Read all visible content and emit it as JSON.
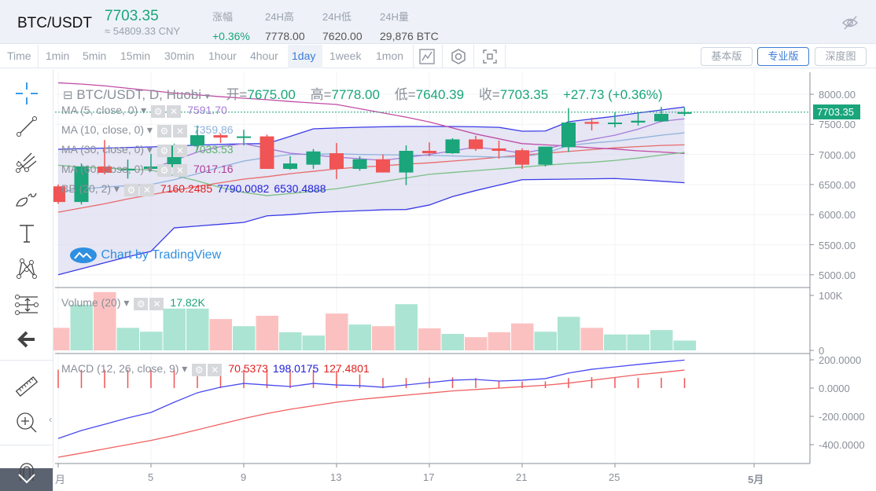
{
  "header": {
    "symbol": "BTC/USDT",
    "price": "7703.35",
    "cny": "≈ 54809.33 CNY",
    "stats": [
      {
        "label": "涨幅",
        "value": "+0.36%",
        "positive": true
      },
      {
        "label": "24H高",
        "value": "7778.00"
      },
      {
        "label": "24H低",
        "value": "7620.00"
      },
      {
        "label": "24H量",
        "value": "29,876 BTC"
      }
    ],
    "hide_icon": "eye-off-icon"
  },
  "toolbar": {
    "intervals": [
      "Time",
      "1min",
      "5min",
      "15min",
      "30min",
      "1hour",
      "4hour",
      "1day",
      "1week",
      "1mon"
    ],
    "active": "1day",
    "icons": [
      "indicator-icon",
      "settings-icon",
      "screenshot-icon"
    ],
    "views": [
      "基本版",
      "专业版",
      "深度图"
    ],
    "active_view": "专业版"
  },
  "sidebar": {
    "tools": [
      "crosshair-icon",
      "trend-line-icon",
      "pitchfork-icon",
      "brush-icon",
      "text-icon",
      "pattern-icon",
      "measure-icon",
      "back-arrow-icon",
      "ruler-icon",
      "zoom-in-icon",
      "magnet-icon"
    ],
    "collapse": "‹"
  },
  "colors": {
    "up": "#1aa57a",
    "down": "#f05454",
    "ma5": "#a67bd8",
    "ma10": "#8fb1dc",
    "ma30": "#7bbf86",
    "ma60": "#c04ca6",
    "bb_upper": "#3a3ae8",
    "bb_mid": "#e86a6a",
    "bb_lower": "#3a3ae8",
    "macd": "#4a4af0",
    "signal": "#f06060"
  },
  "legend": {
    "title": "BTC/USDT, D, Huobi",
    "ohlc": [
      {
        "k": "开=",
        "v": "7675.00"
      },
      {
        "k": "高=",
        "v": "7778.00"
      },
      {
        "k": "低=",
        "v": "7640.39"
      },
      {
        "k": "收=",
        "v": "7703.35"
      }
    ],
    "change": "+27.73 (+0.36%)",
    "indicators": [
      {
        "label": "MA (5, close, 0)",
        "value": "7591.70"
      },
      {
        "label": "MA (10, close, 0)",
        "value": "7359.86"
      },
      {
        "label": "MA (30, close, 0)",
        "value": "7033.53"
      },
      {
        "label": "MA (60, close, 0)",
        "value": "7017.16"
      }
    ],
    "bb": {
      "label": "BB (20, 2)",
      "mid": "7160.2485",
      "upper": "7790.0082",
      "lower": "6530.4888"
    },
    "volume": {
      "label": "Volume (20)",
      "value": "17.82K"
    },
    "macd": {
      "label": "MACD (12, 26, close, 9)",
      "hist": "70.5373",
      "macd": "198.0175",
      "signal": "127.4801"
    },
    "watermark": "Chart by TradingView"
  },
  "chart_data": {
    "type": "candlestick",
    "x_ticks": [
      {
        "day": 1,
        "label": "月"
      },
      {
        "day": 5,
        "label": "5"
      },
      {
        "day": 9,
        "label": "9"
      },
      {
        "day": 13,
        "label": "13"
      },
      {
        "day": 17,
        "label": "17"
      },
      {
        "day": 21,
        "label": "21"
      },
      {
        "day": 25,
        "label": "25"
      },
      {
        "day": 31,
        "label": "5月"
      }
    ],
    "price_ticks": [
      "8000.00",
      "7500.00",
      "7000.00",
      "6500.00",
      "6000.00",
      "5500.00",
      "5000.00"
    ],
    "last_price": "7703.35",
    "volume_ticks": [
      "100K",
      "0"
    ],
    "macd_ticks": [
      "200.0000",
      "0.0000",
      "-200.0000",
      "-400.0000"
    ],
    "price_ylim": [
      4900,
      8300
    ],
    "volume_ylim": [
      0,
      100000
    ],
    "macd_ylim": [
      -520,
      240
    ],
    "ohlc": [
      [
        6470,
        6210,
        6500,
        6180
      ],
      [
        6210,
        6800,
        6850,
        6170
      ],
      [
        6800,
        6695,
        7240,
        6670
      ],
      [
        6735,
        6760,
        6915,
        6600
      ],
      [
        6760,
        6800,
        7010,
        6720
      ],
      [
        6790,
        7150,
        7180,
        6670
      ],
      [
        7150,
        7320,
        7480,
        7070
      ],
      [
        7320,
        7280,
        7350,
        7190
      ],
      [
        7290,
        7300,
        7410,
        7150
      ],
      [
        7300,
        6760,
        7330,
        6760
      ],
      [
        6760,
        6850,
        6970,
        6745
      ],
      [
        6830,
        7050,
        7090,
        6760
      ],
      [
        7020,
        6760,
        7190,
        6590
      ],
      [
        6760,
        6920,
        6970,
        6730
      ],
      [
        6920,
        6700,
        7000,
        6700
      ],
      [
        6700,
        7060,
        7150,
        6490
      ],
      [
        7060,
        7020,
        7200,
        6970
      ],
      [
        7020,
        7250,
        7270,
        7010
      ],
      [
        7250,
        7090,
        7310,
        7060
      ],
      [
        7100,
        7060,
        7230,
        6930
      ],
      [
        7070,
        6830,
        7100,
        6760
      ],
      [
        6830,
        7130,
        7130,
        6800
      ],
      [
        7120,
        7530,
        7770,
        7040
      ],
      [
        7540,
        7510,
        7610,
        7400
      ],
      [
        7510,
        7530,
        7700,
        7450
      ],
      [
        7530,
        7560,
        7700,
        7480
      ],
      [
        7550,
        7675,
        7790,
        7540
      ],
      [
        7675,
        7703.35,
        7778,
        7640.39
      ]
    ],
    "volume": [
      41000,
      83000,
      106000,
      41000,
      34000,
      76000,
      76000,
      57000,
      44000,
      63000,
      33000,
      27000,
      67000,
      47000,
      44000,
      84000,
      40000,
      30000,
      24000,
      33000,
      49000,
      34000,
      61000,
      41000,
      29000,
      29000,
      37000,
      17820
    ],
    "ma5": [
      null,
      null,
      null,
      null,
      6760,
      6900,
      7040,
      7130,
      7180,
      7100,
      7020,
      6990,
      6955,
      6930,
      6900,
      6950,
      7000,
      7060,
      7120,
      7080,
      7020,
      7090,
      7180,
      7250,
      7320,
      7420,
      7550,
      7592
    ],
    "ma10": [
      6380,
      6420,
      6460,
      6480,
      6500,
      6580,
      6680,
      6790,
      6890,
      6950,
      7000,
      7005,
      7010,
      7000,
      6995,
      6990,
      6985,
      6975,
      6965,
      6955,
      6960,
      7020,
      7150,
      7190,
      7220,
      7270,
      7320,
      7360
    ],
    "ma30": [
      6820,
      6790,
      6770,
      6760,
      6740,
      6650,
      6560,
      6450,
      6370,
      6315,
      6350,
      6390,
      6430,
      6490,
      6550,
      6610,
      6670,
      6700,
      6730,
      6760,
      6790,
      6820,
      6850,
      6870,
      6900,
      6940,
      6990,
      7034
    ],
    "ma60": [
      8190,
      8170,
      8140,
      8100,
      8060,
      8020,
      7990,
      7960,
      7935,
      7910,
      7880,
      7855,
      7830,
      7760,
      7690,
      7620,
      7540,
      7440,
      7340,
      7260,
      7180,
      7160,
      7140,
      7110,
      7090,
      7060,
      7040,
      7017
    ],
    "bb_upper": [
      7086,
      7096,
      7106,
      7116,
      7125,
      7140,
      7155,
      7168,
      7178,
      7180,
      7300,
      7426,
      7440,
      7452,
      7460,
      7465,
      7465,
      7465,
      7460,
      7450,
      7386,
      7390,
      7543,
      7590,
      7634,
      7690,
      7739,
      7790
    ],
    "bb_mid": [
      6040,
      6110,
      6180,
      6260,
      6330,
      6400,
      6470,
      6530,
      6590,
      6630,
      6680,
      6720,
      6760,
      6790,
      6810,
      6840,
      6860,
      6890,
      6920,
      6955,
      6990,
      7020,
      7050,
      7080,
      7110,
      7130,
      7150,
      7160
    ],
    "bb_lower": [
      5000,
      5100,
      5200,
      5300,
      5390,
      5780,
      5810,
      5840,
      5870,
      5980,
      6000,
      6030,
      6050,
      6065,
      6080,
      6085,
      6160,
      6300,
      6400,
      6490,
      6580,
      6585,
      6590,
      6595,
      6600,
      6580,
      6555,
      6530
    ],
    "macd": [
      -356,
      -300,
      -256,
      -211,
      -172,
      -100,
      -33,
      6,
      33,
      22,
      11,
      33,
      22,
      17,
      6,
      22,
      39,
      56,
      61,
      50,
      56,
      67,
      106,
      133,
      150,
      167,
      183,
      198.02
    ],
    "signal": [
      -489,
      -460,
      -430,
      -400,
      -370,
      -335,
      -295,
      -255,
      -215,
      -180,
      -150,
      -125,
      -100,
      -80,
      -65,
      -50,
      -35,
      -20,
      -10,
      0,
      10,
      20,
      35,
      55,
      75,
      95,
      110,
      127.48
    ]
  }
}
